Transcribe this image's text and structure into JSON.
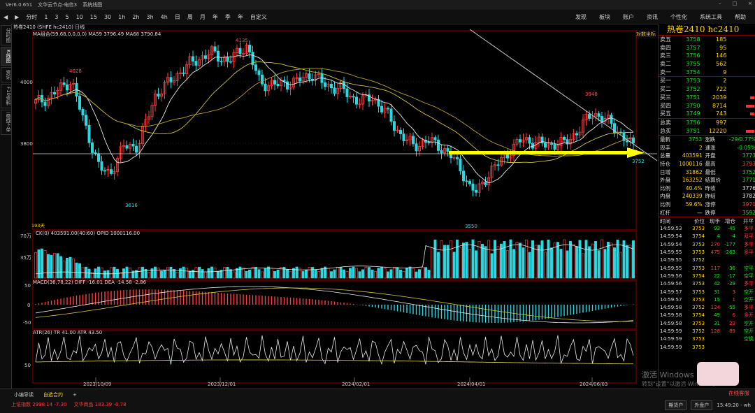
{
  "titlebar": {
    "app_label": "Ver6.0.651",
    "menu": [
      "文华云节点-电信3",
      "系统线图"
    ]
  },
  "toolbar": {
    "left_items": [
      "分时",
      "1",
      "3",
      "5",
      "10",
      "15",
      "30",
      "1h",
      "2h",
      "3h",
      "4h",
      "日",
      "周",
      "月",
      "年",
      "季",
      "年",
      "自定义"
    ],
    "right_items": [
      "发现",
      "板块",
      "账户",
      "资讯",
      "个性化",
      "系统工具",
      "帮助"
    ]
  },
  "sidebar": {
    "tabs": [
      "分时图",
      "K线图",
      "资讯",
      "F10资料",
      "画线下单"
    ]
  },
  "chart": {
    "symbol_line": "热卷2410 (SHFE hc2410)  日线",
    "ma_line": "MA组合(59,68,0,0,0,0)  MA59 3796.49  MA68 3790.84",
    "price_labels": [
      "4000",
      "3800"
    ],
    "annotations": [
      "4028",
      "4135",
      "3948",
      "3616",
      "3550",
      "3752",
      "对数坐标"
    ],
    "vol_line": "CK(0)  403591.00(40:60)  OPID 1000116.00",
    "vol_labels": [
      "70万",
      "35万",
      "193天"
    ],
    "macd_line": "MACD(36,78,22)  DIFF -16.01  DEA -14.58  -2.86",
    "macd_labels": [
      "50",
      "0",
      "-50"
    ],
    "atr_line": "ATR(26)  TR 41.00  ATR 43.50",
    "atr_labels": [
      "50"
    ],
    "dates": [
      "2023/10/09",
      "2023/12/01",
      "2024/02/01",
      "2024/04/01",
      "2024/06/03"
    ]
  },
  "panel": {
    "title": "热卷2410  hc2410",
    "asks": [
      {
        "label": "卖五",
        "price": "3758",
        "vol": "185"
      },
      {
        "label": "卖四",
        "price": "3757",
        "vol": "95"
      },
      {
        "label": "卖三",
        "price": "3756",
        "vol": "146"
      },
      {
        "label": "卖二",
        "price": "3755",
        "vol": "562"
      },
      {
        "label": "卖一",
        "price": "3754",
        "vol": "9"
      }
    ],
    "bids": [
      {
        "label": "买一",
        "price": "3753",
        "vol": "2"
      },
      {
        "label": "买二",
        "price": "3752",
        "vol": "722"
      },
      {
        "label": "买三",
        "price": "3751",
        "vol": "2039"
      },
      {
        "label": "买四",
        "price": "3750",
        "vol": "8714"
      },
      {
        "label": "买五",
        "price": "3749",
        "vol": "743"
      }
    ],
    "totals": [
      {
        "label": "总卖",
        "price": "3756",
        "vol": "997"
      },
      {
        "label": "总买",
        "price": "3751",
        "vol": "12220"
      }
    ],
    "stats": [
      {
        "k1": "最新",
        "v1": "3753",
        "k2": "涨跌",
        "v2": "-29/0.77%"
      },
      {
        "k1": "现手",
        "v1": "2",
        "k2": "速涨",
        "v2": "-0.05%"
      },
      {
        "k1": "总量",
        "v1": "403591",
        "k2": "开盘",
        "v2": "3773"
      },
      {
        "k1": "持仓",
        "v1": "1000116",
        "k2": "最高",
        "v2": "3793"
      },
      {
        "k1": "日增",
        "v1": "31862",
        "k2": "最低",
        "v2": "3752"
      },
      {
        "k1": "外盘",
        "v1": "163252",
        "k2": "结算价",
        "v2": "3771"
      },
      {
        "k1": "比例",
        "v1": "40.4%",
        "k2": "昨收",
        "v2": "3776"
      },
      {
        "k1": "内盘",
        "v1": "240339",
        "k2": "昨结",
        "v2": "3782"
      },
      {
        "k1": "比例",
        "v1": "59.6%",
        "k2": "涨停",
        "v2": "3971"
      },
      {
        "k1": "杠杆",
        "v1": "—",
        "k2": "跌停",
        "v2": "3592"
      }
    ],
    "tick_header": [
      "时间",
      "价位",
      "现手",
      "增仓",
      "开平"
    ],
    "ticks": [
      {
        "t": "14:59:53",
        "p": "3753",
        "v": "93",
        "d": "-45",
        "k": "多平"
      },
      {
        "t": "14:59:54",
        "p": "3754",
        "v": "4",
        "d": "-4",
        "k": "双平"
      },
      {
        "t": "14:59:54",
        "p": "3753",
        "v": "270",
        "d": "-177",
        "k": "多平"
      },
      {
        "t": "14:59:55",
        "p": "3753",
        "v": "475",
        "d": "-263",
        "k": "多平"
      },
      {
        "t": "14:59:55",
        "p": "3752",
        "v": "",
        "d": "",
        "k": ""
      },
      {
        "t": "14:59:55",
        "p": "3753",
        "v": "117",
        "d": "-36",
        "k": "空平"
      },
      {
        "t": "14:59:56",
        "p": "3754",
        "v": "22",
        "d": "-17",
        "k": "空平"
      },
      {
        "t": "14:59:56",
        "p": "3753",
        "v": "42",
        "d": "-29",
        "k": "多平"
      },
      {
        "t": "14:59:57",
        "p": "3753",
        "v": "31",
        "d": "3",
        "k": "空开"
      },
      {
        "t": "14:59:57",
        "p": "3753",
        "v": "15",
        "d": "1",
        "k": "空开"
      },
      {
        "t": "14:59:58",
        "p": "3752",
        "v": "124",
        "d": "-55",
        "k": "多平"
      },
      {
        "t": "14:59:58",
        "p": "3754",
        "v": "49",
        "d": "6",
        "k": "多开"
      },
      {
        "t": "14:59:58",
        "p": "3753",
        "v": "31",
        "d": "23",
        "k": "空开"
      },
      {
        "t": "14:59:59",
        "p": "3752",
        "v": "128",
        "d": "89",
        "k": "空开"
      },
      {
        "t": "14:59:59",
        "p": "3753",
        "v": "",
        "d": "",
        "k": "空换"
      },
      {
        "t": "14:59:59",
        "p": "3753",
        "v": "",
        "d": "",
        "k": ""
      }
    ]
  },
  "statusbar": {
    "tabs": [
      "小编导读",
      "自选合约",
      "+"
    ],
    "index1": "上证指数  2998.14  -7.30",
    "index2": "文华商品  183.39  -0.78",
    "live": "在线客服",
    "buttons": [
      "期货户",
      "外盘户"
    ],
    "time": "15:49:20 - wh"
  },
  "watermark": {
    "line1": "激活 Windows",
    "line2": "转到\"设置\"以激活 Windows。"
  },
  "colors": {
    "up": "#ff3b3b",
    "down": "#2ad8e0",
    "ma1": "#e8e8e8",
    "ma2": "#d4c640",
    "accent": "#ffd200"
  }
}
